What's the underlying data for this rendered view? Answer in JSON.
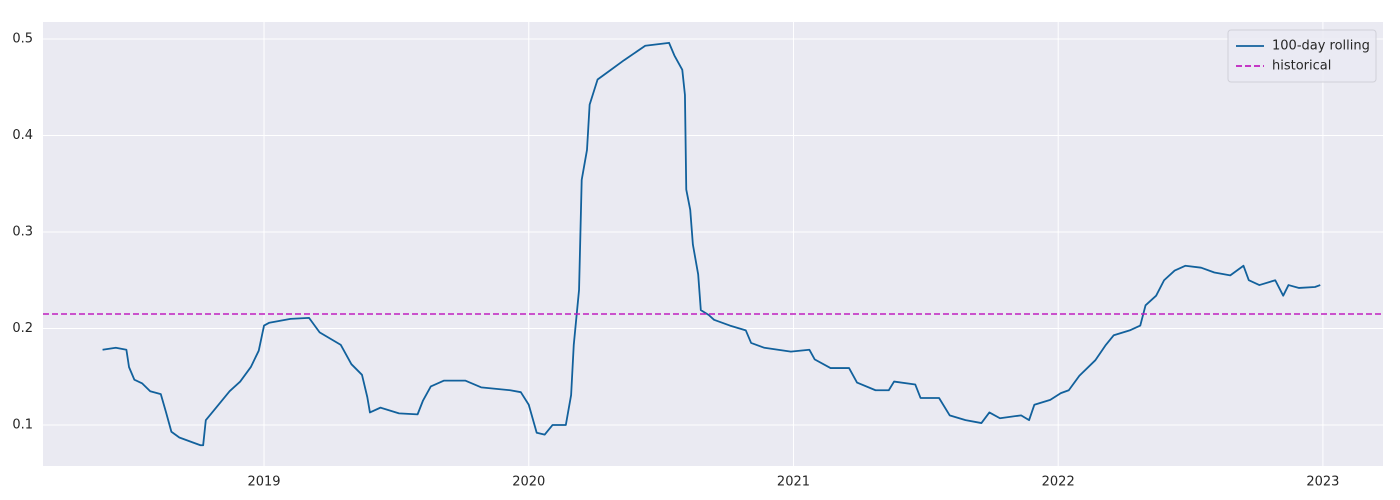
{
  "chart_data": {
    "type": "line",
    "x": [
      2018.39,
      2018.44,
      2018.48,
      2018.49,
      2018.51,
      2018.54,
      2018.57,
      2018.61,
      2018.63,
      2018.65,
      2018.68,
      2018.73,
      2018.76,
      2018.77,
      2018.78,
      2018.81,
      2018.87,
      2018.91,
      2018.95,
      2018.98,
      2019.0,
      2019.02,
      2019.1,
      2019.17,
      2019.21,
      2019.29,
      2019.33,
      2019.37,
      2019.39,
      2019.4,
      2019.44,
      2019.51,
      2019.58,
      2019.6,
      2019.63,
      2019.68,
      2019.76,
      2019.82,
      2019.93,
      2019.97,
      2020.0,
      2020.03,
      2020.06,
      2020.09,
      2020.14,
      2020.16,
      2020.17,
      2020.19,
      2020.2,
      2020.22,
      2020.23,
      2020.26,
      2020.31,
      2020.36,
      2020.44,
      2020.53,
      2020.55,
      2020.58,
      2020.59,
      2020.595,
      2020.61,
      2020.62,
      2020.64,
      2020.65,
      2020.68,
      2020.7,
      2020.76,
      2020.82,
      2020.84,
      2020.89,
      2020.99,
      2021.06,
      2021.08,
      2021.14,
      2021.21,
      2021.24,
      2021.31,
      2021.36,
      2021.38,
      2021.46,
      2021.48,
      2021.55,
      2021.59,
      2021.65,
      2021.71,
      2021.74,
      2021.78,
      2021.86,
      2021.89,
      2021.91,
      2021.97,
      2022.01,
      2022.04,
      2022.08,
      2022.14,
      2022.18,
      2022.21,
      2022.27,
      2022.31,
      2022.33,
      2022.37,
      2022.4,
      2022.44,
      2022.48,
      2022.54,
      2022.59,
      2022.65,
      2022.7,
      2022.72,
      2022.76,
      2022.82,
      2022.85,
      2022.87,
      2022.91,
      2022.97,
      2022.99
    ],
    "series": [
      {
        "name": "100-day rolling",
        "color": "#12619c",
        "values": [
          0.178,
          0.18,
          0.178,
          0.16,
          0.147,
          0.143,
          0.135,
          0.132,
          0.113,
          0.093,
          0.087,
          0.082,
          0.079,
          0.079,
          0.105,
          0.115,
          0.135,
          0.145,
          0.16,
          0.177,
          0.203,
          0.206,
          0.21,
          0.211,
          0.196,
          0.183,
          0.163,
          0.152,
          0.129,
          0.113,
          0.118,
          0.112,
          0.111,
          0.125,
          0.14,
          0.146,
          0.146,
          0.139,
          0.136,
          0.134,
          0.121,
          0.092,
          0.09,
          0.1,
          0.1,
          0.131,
          0.183,
          0.24,
          0.354,
          0.385,
          0.432,
          0.458,
          0.468,
          0.478,
          0.493,
          0.496,
          0.483,
          0.468,
          0.442,
          0.344,
          0.323,
          0.287,
          0.256,
          0.219,
          0.214,
          0.209,
          0.203,
          0.198,
          0.185,
          0.18,
          0.176,
          0.178,
          0.168,
          0.159,
          0.159,
          0.144,
          0.136,
          0.136,
          0.145,
          0.142,
          0.128,
          0.128,
          0.11,
          0.105,
          0.102,
          0.113,
          0.107,
          0.11,
          0.105,
          0.121,
          0.126,
          0.133,
          0.136,
          0.151,
          0.167,
          0.183,
          0.193,
          0.198,
          0.203,
          0.224,
          0.234,
          0.25,
          0.26,
          0.265,
          0.263,
          0.258,
          0.255,
          0.265,
          0.25,
          0.245,
          0.25,
          0.234,
          0.245,
          0.242,
          0.243,
          0.245
        ]
      }
    ],
    "hline": {
      "name": "historical",
      "color": "#bf1fbf",
      "linestyle": "dashed",
      "value": 0.215
    },
    "xlim": [
      2018.165,
      2023.227
    ],
    "ylim": [
      0.0575,
      0.5176
    ],
    "xticks": [
      2019,
      2020,
      2021,
      2022,
      2023
    ],
    "yticks": [
      0.1,
      0.2,
      0.3,
      0.4,
      0.5
    ],
    "grid": true,
    "background": "#eaeaf2",
    "legend": "upper right"
  }
}
